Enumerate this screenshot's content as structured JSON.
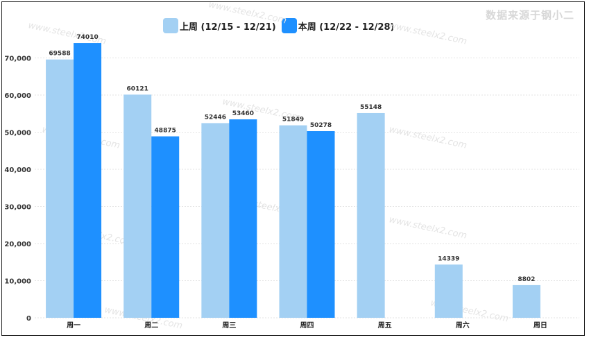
{
  "source_note": "数据来源于钢小二",
  "watermark_text": "www.steelx2.com",
  "chart_data": {
    "type": "bar",
    "categories": [
      "周一",
      "周二",
      "周三",
      "周四",
      "周五",
      "周六",
      "周日"
    ],
    "series": [
      {
        "name": "上周 (12/15 - 12/21)",
        "color": "#a3d0f3",
        "values": [
          69588,
          60121,
          52446,
          51849,
          55148,
          14339,
          8802
        ]
      },
      {
        "name": "本周 (12/22 - 12/28)",
        "color": "#1e90ff",
        "values": [
          74010,
          48875,
          53460,
          50278,
          null,
          null,
          null
        ]
      }
    ],
    "ylim": [
      0,
      80000
    ],
    "yticks": [
      0,
      10000,
      20000,
      30000,
      40000,
      50000,
      60000,
      70000
    ],
    "ytick_labels": [
      "0",
      "10,000",
      "20,000",
      "30,000",
      "40,000",
      "50,000",
      "60,000",
      "70,000"
    ],
    "grid": true,
    "legend_position": "top-center"
  }
}
